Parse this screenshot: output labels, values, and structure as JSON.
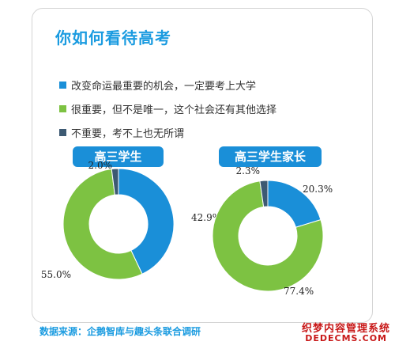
{
  "title": "你如何看待高考",
  "legend": [
    {
      "label": "改变命运最重要的机会，一定要考上大学",
      "color": "#1a8fd8"
    },
    {
      "label": "很重要，但不是唯一，这个社会还有其他选择",
      "color": "#7dc242"
    },
    {
      "label": "不重要，考不上也无所谓",
      "color": "#3d5a73"
    }
  ],
  "footer": "数据来源：企鹅智库与趣头条联合调研",
  "watermark": {
    "line1": "织梦内容管理系统",
    "line2": "DEDECMS.COM"
  },
  "chart_data": [
    {
      "type": "pie",
      "title": "高三学生",
      "categories": [
        "改变命运最重要的机会，一定要考上大学",
        "很重要，但不是唯一，这个社会还有其他选择",
        "不重要，考不上也无所谓"
      ],
      "values": [
        42.9,
        55.0,
        2.0
      ],
      "labels": [
        "42.9%",
        "55.0%",
        "2.0%"
      ],
      "colors": [
        "#1a8fd8",
        "#7dc242",
        "#3d5a73"
      ]
    },
    {
      "type": "pie",
      "title": "高三学生家长",
      "categories": [
        "改变命运最重要的机会，一定要考上大学",
        "很重要，但不是唯一，这个社会还有其他选择",
        "不重要，考不上也无所谓"
      ],
      "values": [
        20.3,
        77.4,
        2.3
      ],
      "labels": [
        "20.3%",
        "77.4%",
        "2.3%"
      ],
      "colors": [
        "#1a8fd8",
        "#7dc242",
        "#3d5a73"
      ]
    }
  ]
}
